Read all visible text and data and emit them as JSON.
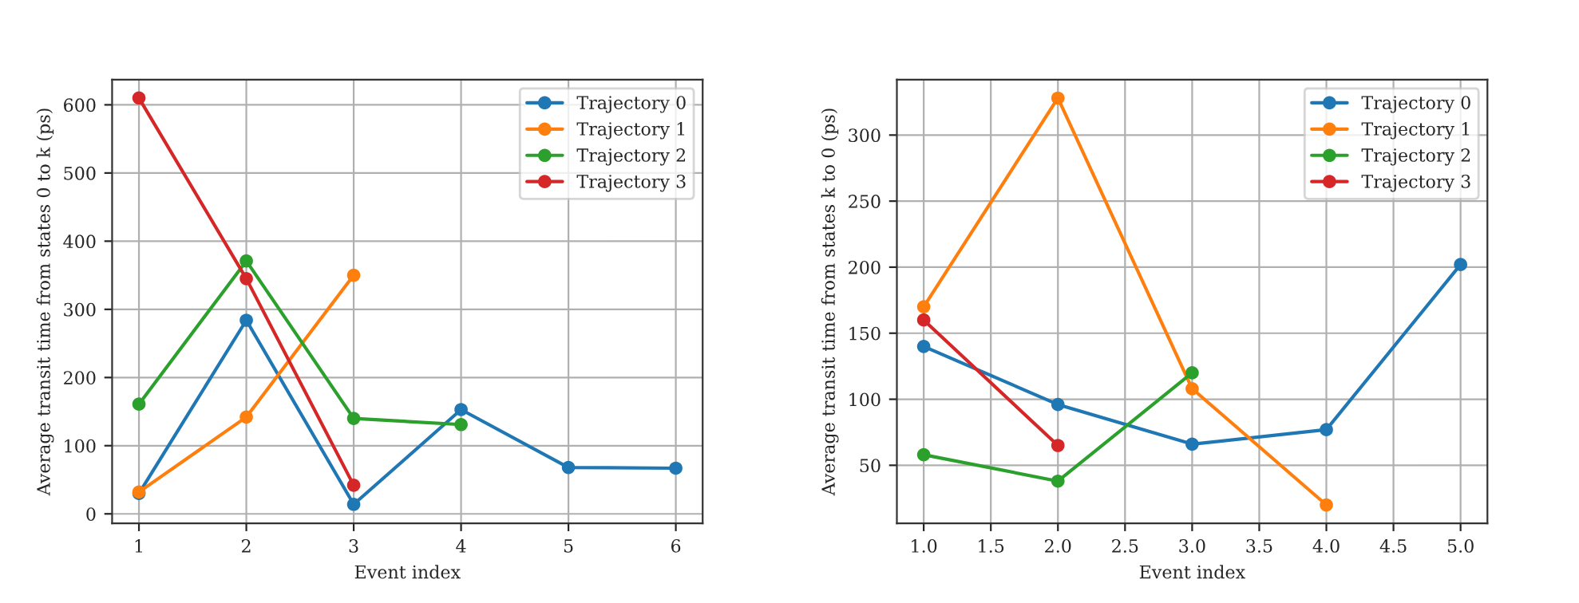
{
  "chart_data": [
    {
      "type": "line",
      "xlabel": "Event index",
      "ylabel": "Average transit time from states 0 to k (ps)",
      "xlim": [
        0.75,
        6.25
      ],
      "xticks": [
        1,
        2,
        3,
        4,
        5,
        6
      ],
      "ylim": [
        -14,
        637
      ],
      "yticks": [
        0,
        100,
        200,
        300,
        400,
        500,
        600
      ],
      "grid": true,
      "legend": "top right",
      "marker": "circle",
      "line_style": "solid",
      "series": [
        {
          "name": "Trajectory 0",
          "color": "#1f77b4",
          "x": [
            1,
            2,
            3,
            4,
            5,
            6
          ],
          "values": [
            30,
            284,
            14,
            153,
            68,
            67
          ]
        },
        {
          "name": "Trajectory 1",
          "color": "#ff7f0e",
          "x": [
            1,
            2,
            3
          ],
          "values": [
            32,
            142,
            350
          ]
        },
        {
          "name": "Trajectory 2",
          "color": "#2ca02c",
          "x": [
            1,
            2,
            3,
            4
          ],
          "values": [
            161,
            371,
            140,
            131
          ]
        },
        {
          "name": "Trajectory 3",
          "color": "#d62728",
          "x": [
            1,
            2,
            3
          ],
          "values": [
            610,
            345,
            42
          ]
        }
      ]
    },
    {
      "type": "line",
      "xlabel": "Event index",
      "ylabel": "Average transit time from states k to 0 (ps)",
      "xlim": [
        0.8,
        5.2
      ],
      "xticks": [
        {
          "value": 1,
          "label": "1.0"
        },
        1.5,
        {
          "value": 2,
          "label": "2.0"
        },
        2.5,
        {
          "value": 3,
          "label": "3.0"
        },
        3.5,
        {
          "value": 4,
          "label": "4.0"
        },
        4.5,
        {
          "value": 5,
          "label": "5.0"
        }
      ],
      "ylim": [
        6,
        342
      ],
      "yticks": [
        50,
        100,
        150,
        200,
        250,
        300
      ],
      "grid": true,
      "legend": "top right",
      "marker": "circle",
      "line_style": "solid",
      "series": [
        {
          "name": "Trajectory 0",
          "color": "#1f77b4",
          "x": [
            1,
            2,
            3,
            4,
            5
          ],
          "values": [
            140,
            96,
            66,
            77,
            202
          ]
        },
        {
          "name": "Trajectory 1",
          "color": "#ff7f0e",
          "x": [
            1,
            2,
            3,
            4
          ],
          "values": [
            170,
            328,
            108,
            20
          ]
        },
        {
          "name": "Trajectory 2",
          "color": "#2ca02c",
          "x": [
            1,
            2,
            3
          ],
          "values": [
            58,
            38,
            120
          ]
        },
        {
          "name": "Trajectory 3",
          "color": "#d62728",
          "x": [
            1,
            2
          ],
          "values": [
            160,
            65
          ]
        }
      ]
    }
  ]
}
